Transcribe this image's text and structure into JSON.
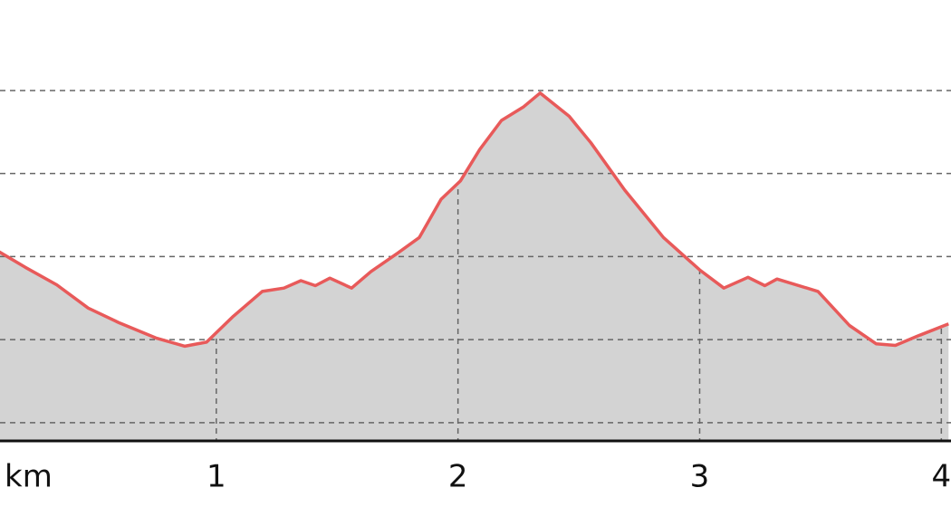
{
  "chart_data": {
    "type": "area",
    "x_label": "km",
    "x": [
      0.1,
      0.21,
      0.34,
      0.47,
      0.6,
      0.75,
      0.87,
      0.96,
      1.07,
      1.19,
      1.28,
      1.35,
      1.41,
      1.47,
      1.56,
      1.64,
      1.75,
      1.84,
      1.93,
      2.01,
      2.09,
      2.18,
      2.27,
      2.34,
      2.46,
      2.55,
      2.69,
      2.85,
      3.0,
      3.1,
      3.2,
      3.27,
      3.32,
      3.49,
      3.62,
      3.73,
      3.81,
      3.9,
      4.03
    ],
    "values": [
      2.06,
      1.87,
      1.66,
      1.38,
      1.2,
      1.02,
      0.92,
      0.97,
      1.28,
      1.58,
      1.62,
      1.71,
      1.65,
      1.74,
      1.62,
      1.82,
      2.04,
      2.23,
      2.69,
      2.91,
      3.29,
      3.64,
      3.8,
      3.97,
      3.69,
      3.37,
      2.8,
      2.23,
      1.84,
      1.62,
      1.75,
      1.65,
      1.73,
      1.58,
      1.17,
      0.95,
      0.93,
      1.04,
      1.19
    ],
    "color": "#e85a5a",
    "fill": "#d3d3d3",
    "xlim": [
      0.105,
      4.04
    ],
    "xticks": [
      1,
      2,
      3,
      4
    ],
    "ylim": [
      -0.22,
      5.09
    ],
    "yticks": [
      0,
      1,
      2,
      3,
      4
    ],
    "grid": true
  }
}
